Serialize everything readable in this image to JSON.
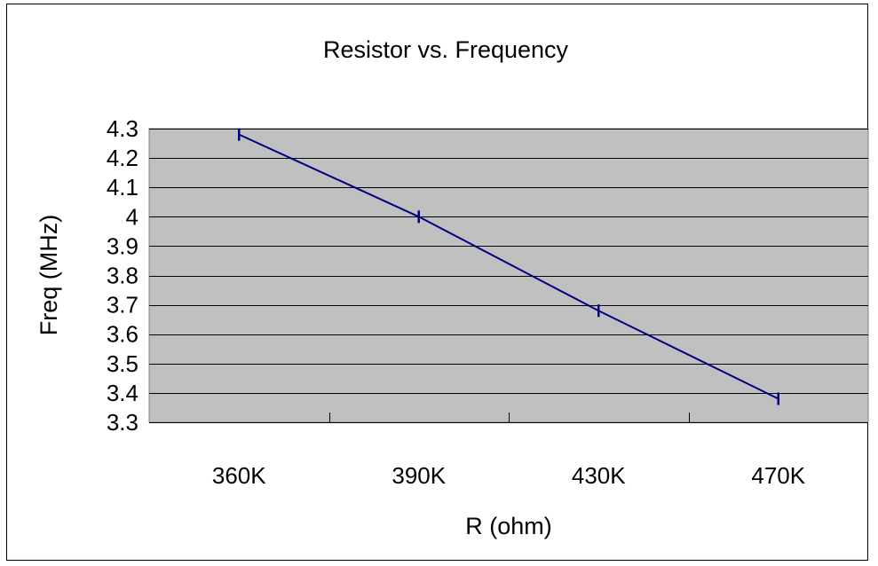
{
  "chart_data": {
    "type": "line",
    "title": "Resistor vs. Frequency",
    "xlabel": "R (ohm)",
    "ylabel": "Freq (MHz)",
    "categories": [
      "360K",
      "390K",
      "430K",
      "470K"
    ],
    "series": [
      {
        "values": [
          4.28,
          4.0,
          3.68,
          3.38
        ]
      }
    ],
    "ylim": [
      3.3,
      4.3
    ],
    "ytick_step": 0.1,
    "ytick_labels": [
      "3.3",
      "3.4",
      "3.5",
      "3.6",
      "3.7",
      "3.8",
      "3.9",
      "4",
      "4.1",
      "4.2",
      "4.3"
    ],
    "grid": true,
    "legend": "none",
    "colors": {
      "plot_background": "#c0c0c0",
      "line": "#000080",
      "gridline": "#000000"
    }
  }
}
